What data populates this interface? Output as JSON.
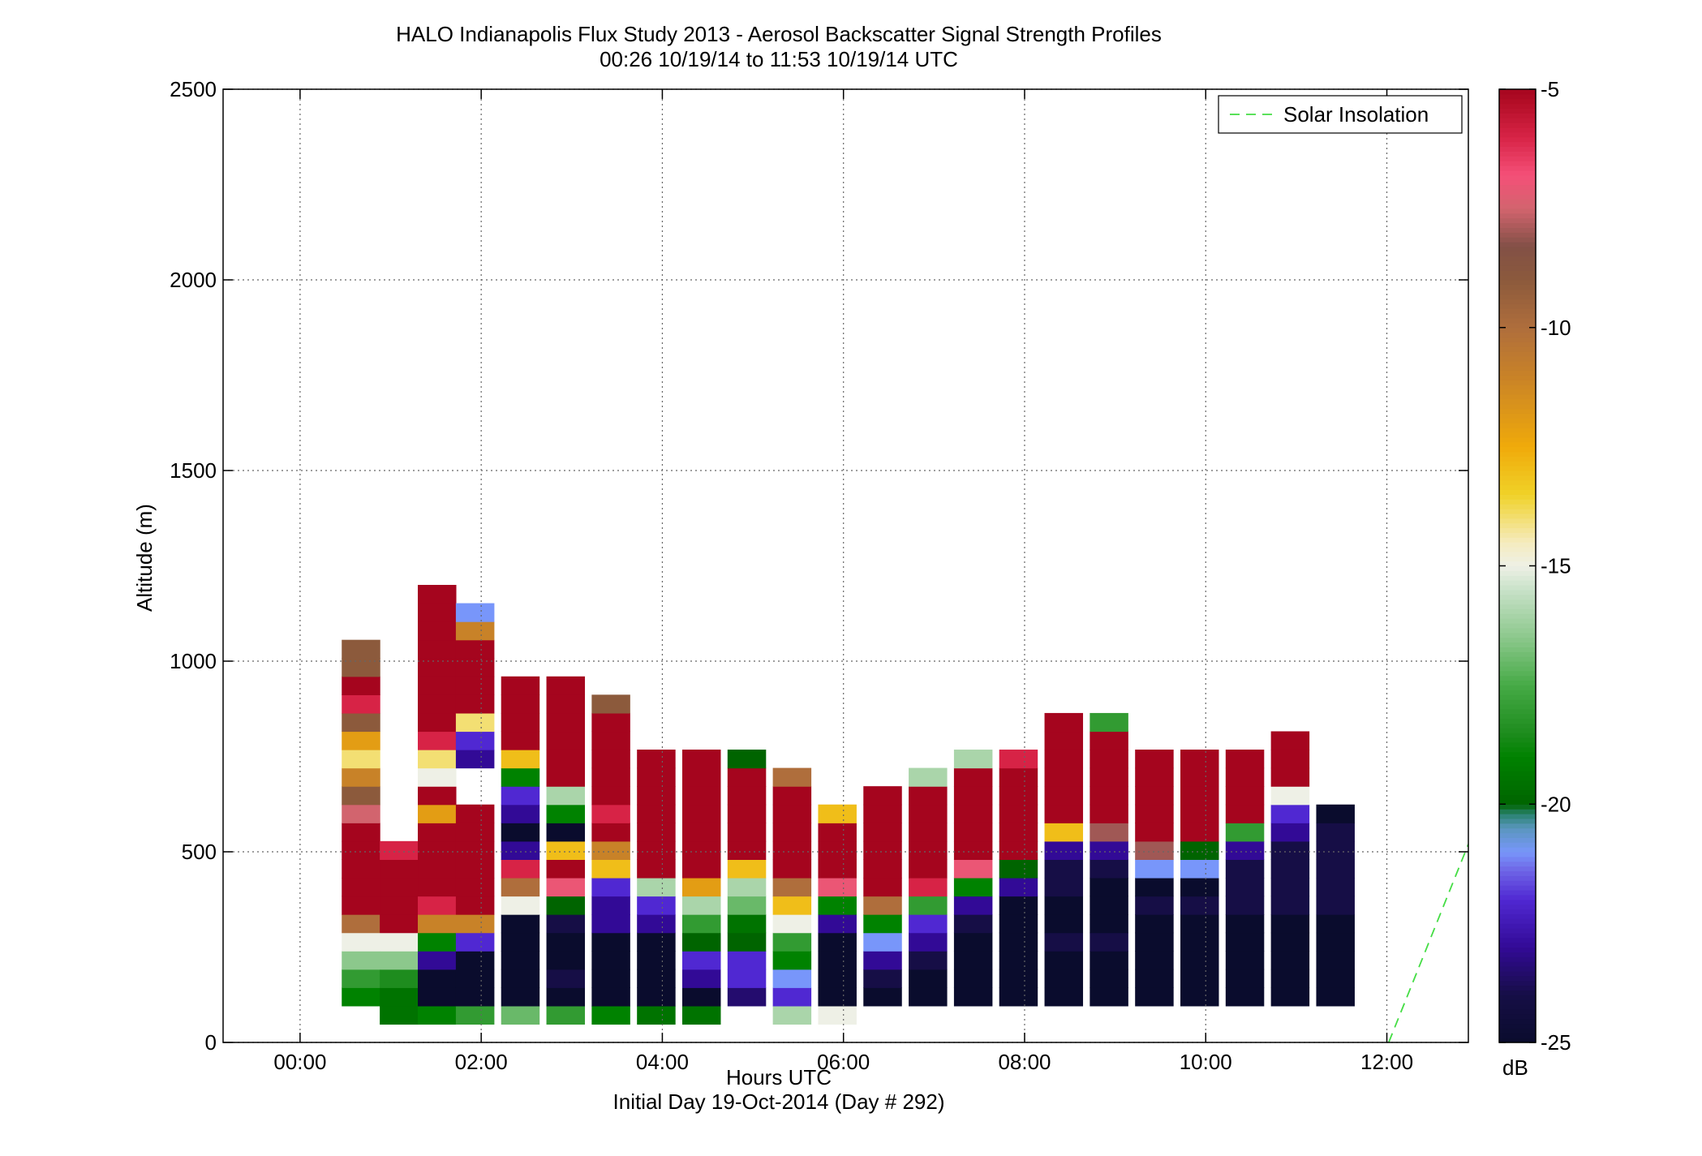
{
  "chart_data": {
    "type": "heatmap",
    "title": "HALO Indianapolis Flux Study 2013 - Aerosol Backscatter Signal Strength Profiles",
    "subtitle": "00:26 10/19/14 to 11:53 10/19/14  UTC",
    "xlabel": "Hours UTC",
    "xlabel2": "Initial Day 19-Oct-2014 (Day # 292)",
    "ylabel": "Altitude (m)",
    "x_unit": "hours",
    "xlim": [
      -0.85,
      12.9
    ],
    "ylim": [
      0,
      2500
    ],
    "x_ticks": [
      0,
      2,
      4,
      6,
      8,
      10,
      12
    ],
    "x_tick_labels": [
      "00:00",
      "02:00",
      "04:00",
      "06:00",
      "08:00",
      "10:00",
      "12:00"
    ],
    "y_ticks": [
      0,
      500,
      1000,
      1500,
      2000,
      2500
    ],
    "y_tick_labels": [
      "0",
      "500",
      "1000",
      "1500",
      "2000",
      "2500"
    ],
    "grid": true,
    "legend": {
      "position": "top-right",
      "entries": [
        {
          "name": "Solar Insolation",
          "style": "dashed",
          "color": "#44dd44"
        }
      ]
    },
    "colorbar": {
      "label": "dB",
      "range": [
        -25,
        -5
      ],
      "ticks": [
        -25,
        -20,
        -15,
        -10,
        -5
      ],
      "tick_labels": [
        "-25",
        "-20",
        "-15",
        "-10",
        "-5"
      ]
    },
    "profile_bin_m": 48,
    "profile_step_h": 0.5,
    "profile_width_h": 0.42,
    "profiles": [
      {
        "t": 0.67,
        "ybase": 96,
        "values": [
          -19,
          -18,
          -16.5,
          -15,
          -10,
          -5,
          -5,
          -5,
          -5,
          -5,
          -7.5,
          -9,
          -11,
          -14,
          -12,
          -9,
          -6,
          -5,
          -9,
          -9
        ]
      },
      {
        "t": 1.09,
        "ybase": 48,
        "values": [
          -19.5,
          -19.5,
          -18.5,
          -16.5,
          -15,
          -5,
          -5,
          -5,
          -5,
          -6
        ]
      },
      {
        "t": 1.51,
        "ybase": 48,
        "values": [
          -19,
          -25,
          -25,
          -23,
          -19,
          -11,
          -6,
          -5,
          -5,
          -5,
          -5,
          -12,
          -5,
          -15,
          -14,
          -6,
          -5,
          -5,
          -5,
          -5,
          -5,
          -5,
          -5,
          -5
        ]
      },
      {
        "t": 1.93,
        "ybase": 48,
        "values": [
          -18,
          -25,
          -25,
          -25,
          -22,
          -11,
          -5,
          -5,
          -5,
          -5,
          -5,
          -5,
          null,
          null,
          -23,
          -22,
          -14,
          -5,
          -5,
          -5,
          -5,
          -11,
          -21
        ]
      },
      {
        "t": 2.43,
        "ybase": 48,
        "values": [
          -17,
          -25,
          -25,
          -25,
          -25,
          -25,
          -15,
          -10,
          -6,
          -23,
          -25,
          -23,
          -22,
          -19,
          -13,
          -5,
          -5,
          -5,
          -5
        ]
      },
      {
        "t": 2.93,
        "ybase": 48,
        "values": [
          -18,
          -25,
          -24,
          -25,
          -25,
          -24,
          -20,
          -7,
          -5,
          -13,
          -25,
          -19,
          -16,
          -5,
          -5,
          -5,
          -5,
          -5,
          -5
        ]
      },
      {
        "t": 3.43,
        "ybase": 48,
        "values": [
          -19,
          -25,
          -25,
          -25,
          -25,
          -23,
          -23,
          -22,
          -13,
          -11,
          -5,
          -6,
          -5,
          -5,
          -5,
          -5,
          -5,
          -9
        ]
      },
      {
        "t": 3.93,
        "ybase": 48,
        "values": [
          -19.5,
          -25,
          -25,
          -25,
          -25,
          -23,
          -22,
          -16,
          -5,
          -5,
          -5,
          -5,
          -5,
          -5,
          -5
        ]
      },
      {
        "t": 4.43,
        "ybase": 48,
        "values": [
          -19.5,
          -25,
          -23,
          -22,
          -20,
          -18,
          -16,
          -12,
          -5,
          -5,
          -5,
          -5,
          -5,
          -5,
          -5
        ]
      },
      {
        "t": 4.93,
        "ybase": 96,
        "values": [
          -23.5,
          -22,
          -22,
          -20,
          -19.5,
          -17,
          -16,
          -13,
          -5,
          -5,
          -5,
          -5,
          -5,
          -20
        ]
      },
      {
        "t": 5.43,
        "ybase": 48,
        "values": [
          -16,
          -22,
          -21,
          -19,
          -18,
          -15,
          -13,
          -10,
          -5,
          -5,
          -5,
          -5,
          -5,
          -10
        ]
      },
      {
        "t": 5.93,
        "ybase": 48,
        "values": [
          -15,
          -25,
          -25,
          -25,
          -25,
          -23,
          -19,
          -7,
          -5,
          -5,
          -5,
          -13
        ]
      },
      {
        "t": 6.43,
        "ybase": 96,
        "values": [
          -25,
          -24,
          -23,
          -21,
          -19,
          -10,
          -5,
          -5,
          -5,
          -5,
          -5,
          -5
        ]
      },
      {
        "t": 6.93,
        "ybase": 96,
        "values": [
          -25,
          -25,
          -24,
          -23,
          -22,
          -18,
          -6,
          -5,
          -5,
          -5,
          -5,
          -5,
          -16
        ]
      },
      {
        "t": 7.43,
        "ybase": 96,
        "values": [
          -25,
          -25,
          -25,
          -25,
          -24,
          -23,
          -19,
          -7,
          -5,
          -5,
          -5,
          -5,
          -5,
          -16
        ]
      },
      {
        "t": 7.93,
        "ybase": 96,
        "values": [
          -25,
          -25,
          -25,
          -25,
          -25,
          -25,
          -23,
          -20,
          -5,
          -5,
          -5,
          -5,
          -5,
          -6
        ]
      },
      {
        "t": 8.43,
        "ybase": 96,
        "values": [
          -25,
          -25,
          -25,
          -24,
          -25,
          -25,
          -24,
          -24,
          -23,
          -13,
          -5,
          -5,
          -5,
          -5,
          -5,
          -5
        ]
      },
      {
        "t": 8.93,
        "ybase": 96,
        "values": [
          -25,
          -25,
          -25,
          -24,
          -25,
          -25,
          -25,
          -24,
          -23,
          -8,
          -5,
          -5,
          -5,
          -5,
          -5,
          -18
        ]
      },
      {
        "t": 9.43,
        "ybase": 96,
        "values": [
          -25,
          -25,
          -25,
          -25,
          -25,
          -24,
          -25,
          -21,
          -8,
          -5,
          -5,
          -5,
          -5,
          -5
        ]
      },
      {
        "t": 9.93,
        "ybase": 96,
        "values": [
          -25,
          -25,
          -25,
          -25,
          -25,
          -24,
          -25,
          -21,
          -20,
          -5,
          -5,
          -5,
          -5,
          -5
        ]
      },
      {
        "t": 10.43,
        "ybase": 96,
        "values": [
          -25,
          -25,
          -25,
          -25,
          -25,
          -24,
          -24,
          -24,
          -23,
          -18,
          -5,
          -5,
          -5,
          -5
        ]
      },
      {
        "t": 10.93,
        "ybase": 96,
        "values": [
          -25,
          -25,
          -25,
          -25,
          -25,
          -24,
          -24,
          -24,
          -24,
          -23,
          -22,
          -15,
          -5,
          -5,
          -5
        ]
      },
      {
        "t": 11.43,
        "ybase": 96,
        "values": [
          -25,
          -25,
          -25,
          -25,
          -25,
          -24,
          -24,
          -24,
          -24,
          -24,
          -25
        ]
      }
    ],
    "series": [
      {
        "name": "Solar Insolation",
        "style": "dashed",
        "x": [
          12.02,
          12.9
        ],
        "y": [
          0,
          520
        ]
      }
    ]
  }
}
